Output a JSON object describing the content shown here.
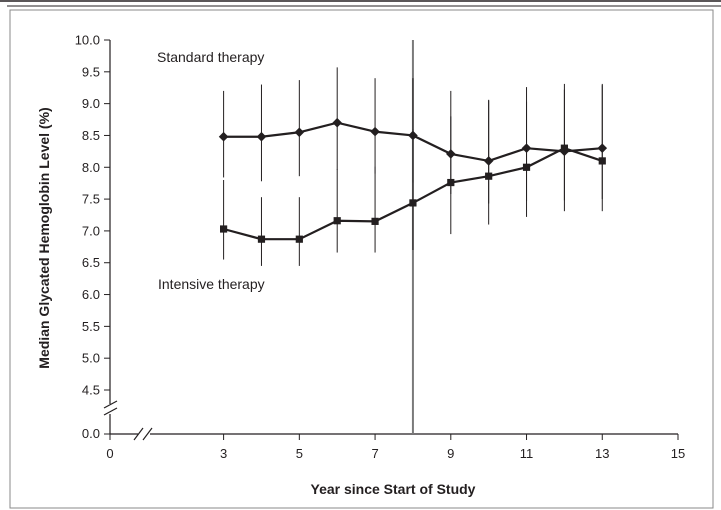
{
  "chart_data": {
    "type": "line",
    "title": "",
    "xlabel": "Year since Start of Study",
    "ylabel": "Median Glycated Hemoglobin Level (%)",
    "xlim": [
      0,
      15
    ],
    "x_ticks": [
      0,
      3,
      5,
      7,
      9,
      11,
      13,
      15
    ],
    "x_tick_labels": [
      "0",
      "3",
      "5",
      "7",
      "9",
      "11",
      "13",
      "15"
    ],
    "ylim": [
      4.5,
      10.0
    ],
    "y_ticks": [
      4.5,
      5.0,
      5.5,
      6.0,
      6.5,
      7.0,
      7.5,
      8.0,
      8.5,
      9.0,
      9.5,
      10.0
    ],
    "y_tick_labels": [
      "4.5",
      "5.0",
      "5.5",
      "6.0",
      "6.5",
      "7.0",
      "7.5",
      "8.0",
      "8.5",
      "9.0",
      "9.5",
      "10.0"
    ],
    "y_break_label": "0.0",
    "axis_breaks": [
      "x",
      "y"
    ],
    "vertical_reference_x": 8,
    "grid": false,
    "series": [
      {
        "name": "Standard therapy",
        "marker": "diamond",
        "color": "#231f20",
        "x": [
          3,
          4,
          5,
          6,
          7,
          8,
          9,
          10,
          11,
          12,
          13
        ],
        "y": [
          8.48,
          8.48,
          8.55,
          8.7,
          8.56,
          8.5,
          8.21,
          8.1,
          8.3,
          8.25,
          8.3
        ],
        "err_low": [
          7.84,
          7.78,
          7.86,
          7.96,
          7.9,
          7.76,
          7.58,
          7.43,
          7.47,
          7.48,
          7.5
        ],
        "err_high": [
          9.2,
          9.3,
          9.37,
          9.57,
          9.4,
          9.4,
          9.2,
          9.06,
          9.26,
          9.31,
          9.31
        ]
      },
      {
        "name": "Intensive therapy",
        "marker": "square",
        "color": "#231f20",
        "x": [
          3,
          4,
          5,
          6,
          7,
          8,
          9,
          10,
          11,
          12,
          13
        ],
        "y": [
          7.03,
          6.87,
          6.87,
          7.16,
          7.15,
          7.44,
          7.76,
          7.86,
          8.0,
          8.3,
          8.1
        ],
        "err_low": [
          6.55,
          6.45,
          6.45,
          6.66,
          6.66,
          6.7,
          6.95,
          7.1,
          7.22,
          7.31,
          7.31
        ],
        "err_high": [
          7.8,
          7.53,
          7.53,
          7.97,
          8.01,
          8.6,
          8.8,
          9.05,
          9.03,
          9.22,
          9.29
        ]
      }
    ]
  }
}
